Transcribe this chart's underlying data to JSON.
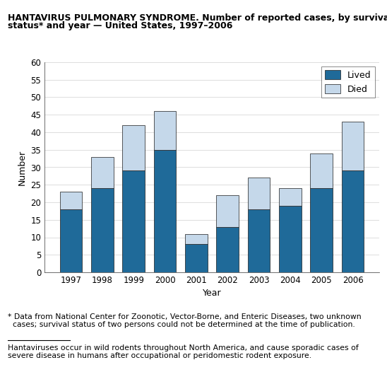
{
  "title_line1": "HANTAVIRUS PULMONARY SYNDROME. Number of reported cases, by survival",
  "title_line2": "status* and year — United States, 1997–2006",
  "years": [
    1997,
    1998,
    1999,
    2000,
    2001,
    2002,
    2003,
    2004,
    2005,
    2006
  ],
  "lived": [
    18,
    24,
    29,
    35,
    8,
    13,
    18,
    19,
    24,
    29
  ],
  "died": [
    5,
    9,
    13,
    11,
    3,
    9,
    9,
    5,
    10,
    14
  ],
  "lived_color": "#1f6a99",
  "died_color": "#c5d8ea",
  "bar_edgecolor": "#1a1a1a",
  "ylabel": "Number",
  "xlabel": "Year",
  "ylim": [
    0,
    60
  ],
  "yticks": [
    0,
    5,
    10,
    15,
    20,
    25,
    30,
    35,
    40,
    45,
    50,
    55,
    60
  ],
  "legend_lived": "Lived",
  "legend_died": "Died",
  "footnote1": "* Data from National Center for Zoonotic, Vector-Borne, and Enteric Diseases, two unknown\n  cases; survival status of two persons could not be determined at the time of publication.",
  "footnote2": "Hantaviruses occur in wild rodents throughout North America, and cause sporadic cases of\nsevere disease in humans after occupational or peridomestic rodent exposure.",
  "title_fontsize": 9,
  "axis_fontsize": 9,
  "tick_fontsize": 8.5,
  "legend_fontsize": 9,
  "footnote_fontsize": 7.8
}
